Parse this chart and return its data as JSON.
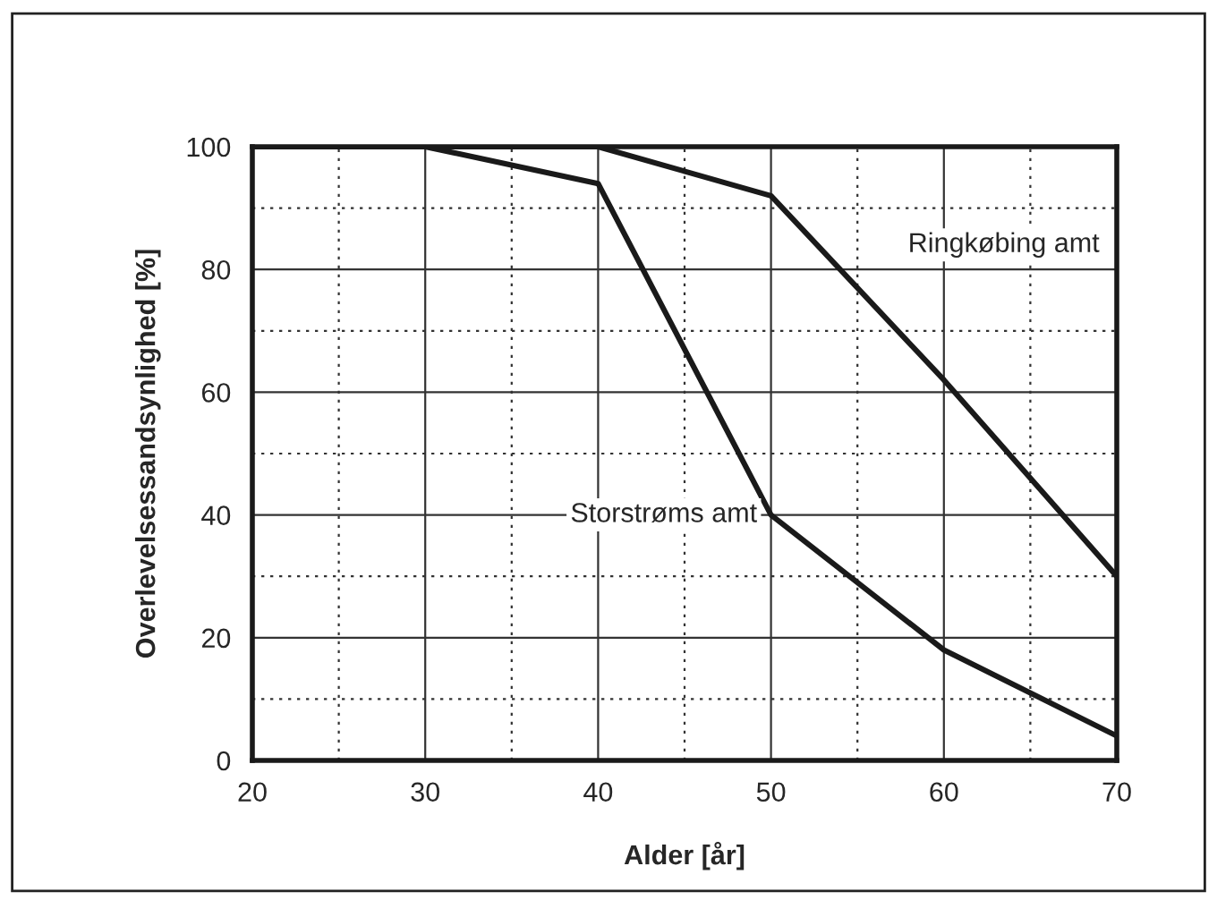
{
  "chart_data": {
    "type": "line",
    "xlabel": "Alder [år]",
    "ylabel": "Overlevelsessandsynlighed [%]",
    "xlim": [
      20,
      70
    ],
    "xticks": [
      20,
      30,
      40,
      50,
      60,
      70
    ],
    "ylim": [
      0,
      100
    ],
    "yticks": [
      0,
      20,
      40,
      60,
      80,
      100
    ],
    "grid": true,
    "marker": "none",
    "line_style": "solid",
    "series": [
      {
        "name": "Storstrøms amt",
        "color": "#1a1a1a",
        "x": [
          20,
          30,
          40,
          50,
          60,
          70
        ],
        "values": [
          100,
          100,
          94,
          40,
          18,
          4
        ]
      },
      {
        "name": "Ringkøbing amt",
        "color": "#1a1a1a",
        "x": [
          20,
          40,
          50,
          60,
          70
        ],
        "values": [
          100,
          100,
          92,
          62,
          30
        ]
      }
    ]
  }
}
